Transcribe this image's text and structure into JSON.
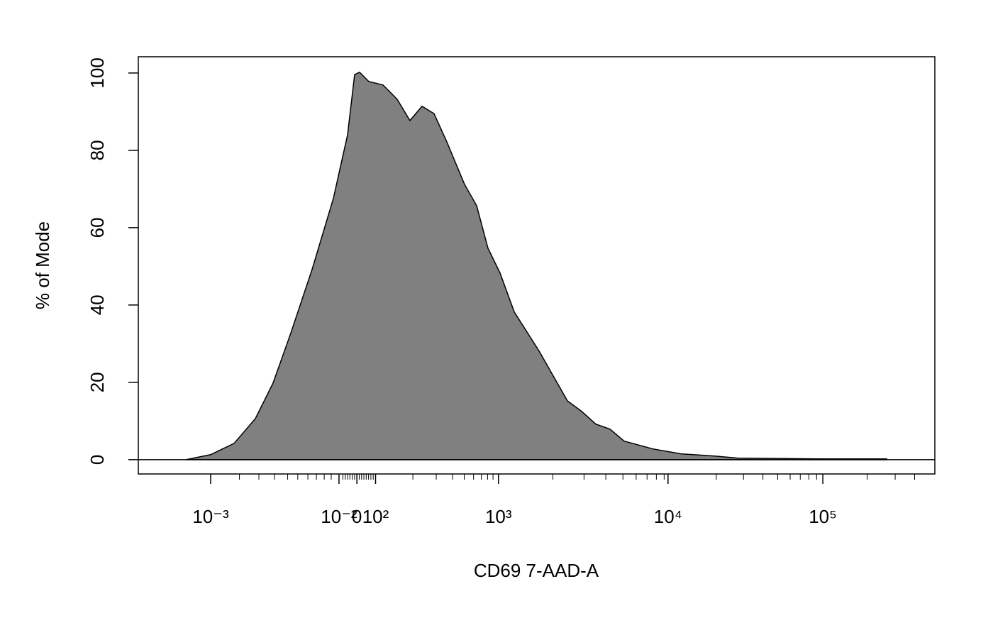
{
  "chart_data": {
    "type": "area",
    "xlabel": "CD69 7-AAD-A",
    "ylabel": "% of Mode",
    "x": [
      61.1,
      93.0,
      123.1,
      150.4,
      173.2,
      196.0,
      223.4,
      250.7,
      269.0,
      278.1,
      284.5,
      296.3,
      314.6,
      332.8,
      349.2,
      364.7,
      380.2,
      396.6,
      419.4,
      434.9,
      449.5,
      465.0,
      483.3,
      515.2,
      551.7,
      569.9,
      588.1,
      606.4,
      624.6,
      661.1,
      697.5,
      743.1,
      770.5,
      879.9,
      962.0
    ],
    "values": [
      0,
      1.3,
      4.2,
      10.6,
      19.8,
      32.7,
      49.2,
      67.5,
      84,
      99.6,
      100.2,
      97.8,
      96.9,
      93.2,
      87.7,
      91.4,
      89.5,
      82.2,
      71.2,
      65.7,
      54.7,
      48.3,
      38.2,
      28.1,
      15.2,
      12.5,
      9.2,
      7.9,
      4.8,
      2.8,
      1.5,
      0.9,
      0.4,
      0.2,
      0.2
    ],
    "color": "#808080",
    "xlim": [
      0,
      1024
    ],
    "xticks": [
      {
        "value": 93,
        "label": "10⁻³"
      },
      {
        "value": 258,
        "label": "10⁻²"
      },
      {
        "value": 281,
        "label": "0"
      },
      {
        "value": 305,
        "label": "10²"
      },
      {
        "value": 463,
        "label": "10³"
      },
      {
        "value": 681,
        "label": "10⁴"
      },
      {
        "value": 880,
        "label": "10⁵"
      }
    ],
    "xminorticks": [
      130,
      155,
      175,
      192,
      205,
      218,
      229,
      239,
      248,
      263,
      266,
      269,
      272,
      275,
      278,
      284,
      287,
      290,
      293,
      296,
      299,
      302,
      353,
      383,
      404,
      419,
      431,
      441,
      449,
      456,
      533,
      573,
      601,
      623,
      640,
      654,
      666,
      676,
      743,
      778,
      803,
      822,
      838,
      851,
      862,
      872,
      937,
      973,
      998
    ],
    "ylim": [
      -3.7,
      104.2
    ],
    "yticks": [
      0,
      20,
      40,
      60,
      80,
      100
    ]
  }
}
